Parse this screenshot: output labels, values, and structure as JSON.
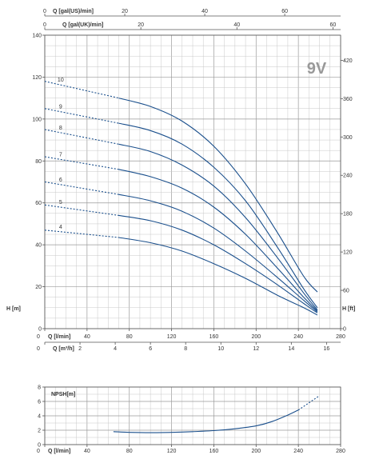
{
  "chart_data": [
    {
      "type": "line",
      "model_label": "9V",
      "x_axes": {
        "q_gal_us": {
          "label": "Q [gal(US)/min]",
          "ticks": [
            0,
            20,
            40,
            60
          ]
        },
        "q_gal_uk": {
          "label": "Q [gal(UK)/min]",
          "ticks": [
            0,
            20,
            40,
            60
          ]
        },
        "q_l_min": {
          "label": "Q [l/min]",
          "ticks": [
            0,
            40,
            80,
            120,
            160,
            200,
            240,
            280
          ],
          "range": [
            0,
            280
          ]
        },
        "q_m3_h": {
          "label": "Q [m³/h]",
          "ticks": [
            0,
            2,
            4,
            6,
            8,
            10,
            12,
            14,
            16
          ]
        }
      },
      "y_left": {
        "label": "H [m]",
        "ticks": [
          0,
          20,
          40,
          60,
          80,
          100,
          120,
          140
        ],
        "range": [
          0,
          140
        ]
      },
      "y_right": {
        "label": "H [ft]",
        "ticks": [
          0,
          60,
          120,
          180,
          240,
          300,
          360,
          420
        ]
      },
      "grid": true,
      "series": [
        {
          "name": "4",
          "dashed": [
            [
              0,
              47
            ],
            [
              70,
              43.5
            ]
          ],
          "points": [
            [
              70,
              43.5
            ],
            [
              100,
              41
            ],
            [
              130,
              37
            ],
            [
              160,
              31
            ],
            [
              190,
              24
            ],
            [
              220,
              16
            ],
            [
              245,
              10
            ],
            [
              258,
              6.5
            ]
          ]
        },
        {
          "name": "5",
          "dashed": [
            [
              0,
              59
            ],
            [
              70,
              54
            ]
          ],
          "points": [
            [
              70,
              54
            ],
            [
              100,
              51.5
            ],
            [
              130,
              47
            ],
            [
              160,
              40
            ],
            [
              190,
              31
            ],
            [
              220,
              21
            ],
            [
              245,
              12
            ],
            [
              258,
              7.5
            ]
          ]
        },
        {
          "name": "6",
          "dashed": [
            [
              0,
              70
            ],
            [
              70,
              64
            ]
          ],
          "points": [
            [
              70,
              64
            ],
            [
              100,
              61
            ],
            [
              130,
              56
            ],
            [
              160,
              48
            ],
            [
              190,
              37
            ],
            [
              220,
              24.5
            ],
            [
              245,
              13.5
            ],
            [
              258,
              8
            ]
          ]
        },
        {
          "name": "7",
          "dashed": [
            [
              0,
              82
            ],
            [
              70,
              76
            ]
          ],
          "points": [
            [
              70,
              76
            ],
            [
              100,
              72.5
            ],
            [
              130,
              67
            ],
            [
              160,
              58
            ],
            [
              190,
              45
            ],
            [
              220,
              29
            ],
            [
              245,
              15
            ],
            [
              258,
              8.5
            ]
          ]
        },
        {
          "name": "8",
          "dashed": [
            [
              0,
              95
            ],
            [
              70,
              88
            ]
          ],
          "points": [
            [
              70,
              88
            ],
            [
              100,
              84.5
            ],
            [
              130,
              78
            ],
            [
              160,
              68
            ],
            [
              190,
              53
            ],
            [
              220,
              34
            ],
            [
              245,
              17
            ],
            [
              258,
              9
            ]
          ]
        },
        {
          "name": "9",
          "dashed": [
            [
              0,
              105
            ],
            [
              70,
              98
            ]
          ],
          "points": [
            [
              70,
              98
            ],
            [
              100,
              94.5
            ],
            [
              130,
              88
            ],
            [
              160,
              77
            ],
            [
              190,
              61
            ],
            [
              220,
              39
            ],
            [
              245,
              19
            ],
            [
              258,
              10
            ]
          ]
        },
        {
          "name": "10",
          "dashed": [
            [
              0,
              118
            ],
            [
              70,
              110
            ]
          ],
          "points": [
            [
              70,
              110
            ],
            [
              100,
              106
            ],
            [
              130,
              99
            ],
            [
              160,
              87
            ],
            [
              190,
              69
            ],
            [
              220,
              46
            ],
            [
              245,
              25
            ],
            [
              258,
              17.5
            ]
          ]
        }
      ]
    },
    {
      "type": "line",
      "y_label": "NPSH[m]",
      "x_label": "Q [l/min]",
      "x_ticks": [
        0,
        40,
        80,
        120,
        160,
        200,
        240,
        280
      ],
      "y_ticks": [
        0,
        2,
        4,
        6,
        8
      ],
      "x_range": [
        0,
        280
      ],
      "y_range": [
        0,
        8
      ],
      "grid": true,
      "series": [
        {
          "name": "NPSH",
          "points": [
            [
              65,
              1.8
            ],
            [
              80,
              1.7
            ],
            [
              100,
              1.65
            ],
            [
              120,
              1.7
            ],
            [
              140,
              1.8
            ],
            [
              160,
              1.95
            ],
            [
              180,
              2.2
            ],
            [
              200,
              2.6
            ],
            [
              215,
              3.2
            ],
            [
              230,
              4.1
            ],
            [
              240,
              4.8
            ]
          ],
          "dashed": [
            [
              240,
              4.8
            ],
            [
              250,
              5.8
            ],
            [
              260,
              6.8
            ]
          ]
        }
      ]
    }
  ]
}
